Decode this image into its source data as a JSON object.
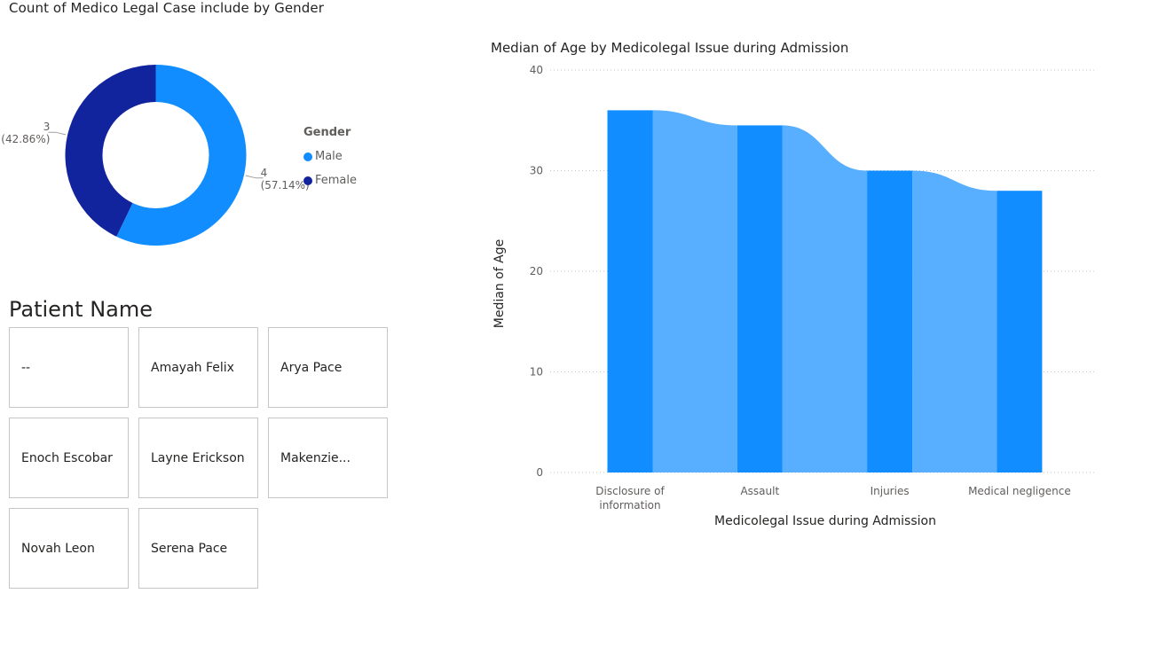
{
  "donut_chart": {
    "title": "Count of Medico Legal Case include by Gender",
    "legend_title": "Gender",
    "colors": {
      "Male": "#118DFF",
      "Female": "#12239E"
    }
  },
  "slicer": {
    "title": "Patient Name",
    "tiles": [
      "--",
      "Amayah Felix",
      "Arya Pace",
      "Enoch Escobar",
      "Layne Erickson",
      "Makenzie...",
      "Novah Leon",
      "Serena Pace"
    ]
  },
  "bar_chart": {
    "title": "Median of Age by Medicolegal Issue during Admission",
    "colors": {
      "bar": "#118DFF",
      "ribbon": "#58AFFF",
      "grid": "#c8c6c4",
      "axis_text": "#605e5c"
    }
  },
  "chart_data": [
    {
      "type": "pie",
      "title": "Count of Medico Legal Case include by Gender",
      "legend_title": "Gender",
      "categories": [
        "Male",
        "Female"
      ],
      "values": [
        4,
        3
      ],
      "labels": [
        "4",
        "3"
      ],
      "percent_labels": [
        "(57.14%)",
        "(42.86%)"
      ],
      "legend_placement": "right",
      "donut": true
    },
    {
      "type": "bar",
      "title": "Median of Age by Medicolegal Issue during Admission",
      "categories": [
        "Disclosure of information",
        "Assault",
        "Injuries",
        "Medical negligence"
      ],
      "category_label_lines": [
        [
          "Disclosure of",
          "information"
        ],
        [
          "Assault"
        ],
        [
          "Injuries"
        ],
        [
          "Medical negligence"
        ]
      ],
      "values": [
        36,
        34.5,
        30,
        28
      ],
      "xlabel": "Medicolegal Issue during Admission",
      "ylabel": "Median of Age",
      "ylim": [
        0,
        40
      ],
      "yticks": [
        0,
        10,
        20,
        30,
        40
      ],
      "grid": true,
      "ribbon": true
    }
  ]
}
